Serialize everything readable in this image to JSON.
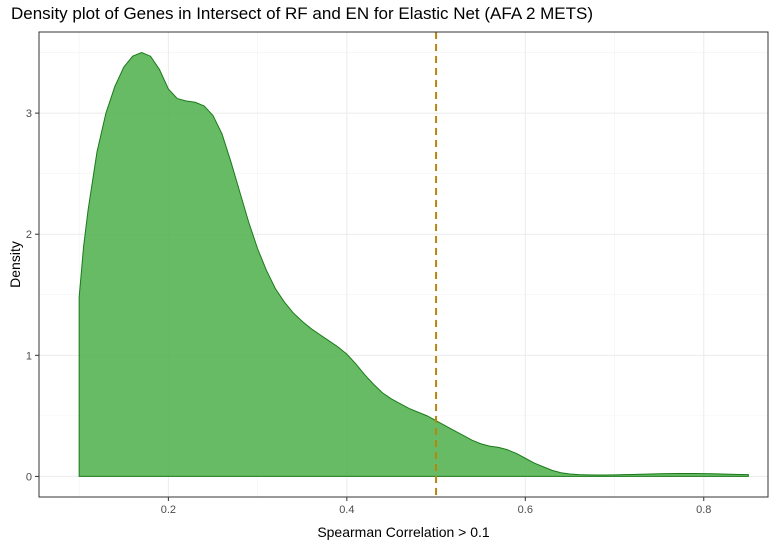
{
  "chart_data": {
    "type": "area",
    "title": "Density plot of Genes in Intersect of RF and EN for Elastic Net (AFA 2 METS)",
    "xlabel": "Spearman Correlation > 0.1",
    "ylabel": "Density",
    "xlim": [
      0.055,
      0.872
    ],
    "ylim": [
      -0.17,
      3.67
    ],
    "x_ticks": [
      0.2,
      0.4,
      0.6,
      0.8
    ],
    "x_tick_labels": [
      "0.2",
      "0.4",
      "0.6",
      "0.8"
    ],
    "y_ticks": [
      0,
      1,
      2,
      3
    ],
    "y_tick_labels": [
      "0",
      "1",
      "2",
      "3"
    ],
    "grid": true,
    "legend": "none",
    "fill_color": "#4daf4a",
    "fill_opacity": 0.85,
    "line_color": "#1a7a1a",
    "vline": {
      "x": 0.5,
      "color": "#b8860b",
      "style": "dashed"
    },
    "series": [
      {
        "x": [
          0.1,
          0.105,
          0.11,
          0.12,
          0.13,
          0.14,
          0.15,
          0.16,
          0.17,
          0.18,
          0.19,
          0.2,
          0.21,
          0.22,
          0.23,
          0.24,
          0.25,
          0.26,
          0.27,
          0.28,
          0.29,
          0.3,
          0.31,
          0.32,
          0.33,
          0.34,
          0.35,
          0.36,
          0.37,
          0.38,
          0.39,
          0.4,
          0.41,
          0.42,
          0.43,
          0.44,
          0.45,
          0.46,
          0.47,
          0.48,
          0.49,
          0.5,
          0.51,
          0.52,
          0.53,
          0.54,
          0.55,
          0.56,
          0.57,
          0.58,
          0.59,
          0.6,
          0.61,
          0.62,
          0.63,
          0.64,
          0.65,
          0.66,
          0.67,
          0.68,
          0.69,
          0.7,
          0.71,
          0.72,
          0.73,
          0.74,
          0.75,
          0.76,
          0.77,
          0.78,
          0.79,
          0.8,
          0.81,
          0.82,
          0.83,
          0.84,
          0.85
        ],
        "y": [
          1.48,
          1.9,
          2.2,
          2.68,
          3.0,
          3.22,
          3.38,
          3.47,
          3.5,
          3.47,
          3.36,
          3.2,
          3.12,
          3.1,
          3.09,
          3.06,
          2.98,
          2.83,
          2.6,
          2.35,
          2.1,
          1.88,
          1.7,
          1.55,
          1.44,
          1.35,
          1.28,
          1.22,
          1.17,
          1.12,
          1.07,
          1.01,
          0.93,
          0.84,
          0.76,
          0.69,
          0.64,
          0.6,
          0.56,
          0.53,
          0.5,
          0.46,
          0.42,
          0.38,
          0.34,
          0.3,
          0.27,
          0.25,
          0.24,
          0.22,
          0.19,
          0.15,
          0.11,
          0.08,
          0.05,
          0.03,
          0.02,
          0.015,
          0.013,
          0.012,
          0.012,
          0.013,
          0.015,
          0.016,
          0.018,
          0.02,
          0.022,
          0.023,
          0.024,
          0.024,
          0.024,
          0.023,
          0.022,
          0.02,
          0.018,
          0.016,
          0.015
        ]
      }
    ]
  }
}
